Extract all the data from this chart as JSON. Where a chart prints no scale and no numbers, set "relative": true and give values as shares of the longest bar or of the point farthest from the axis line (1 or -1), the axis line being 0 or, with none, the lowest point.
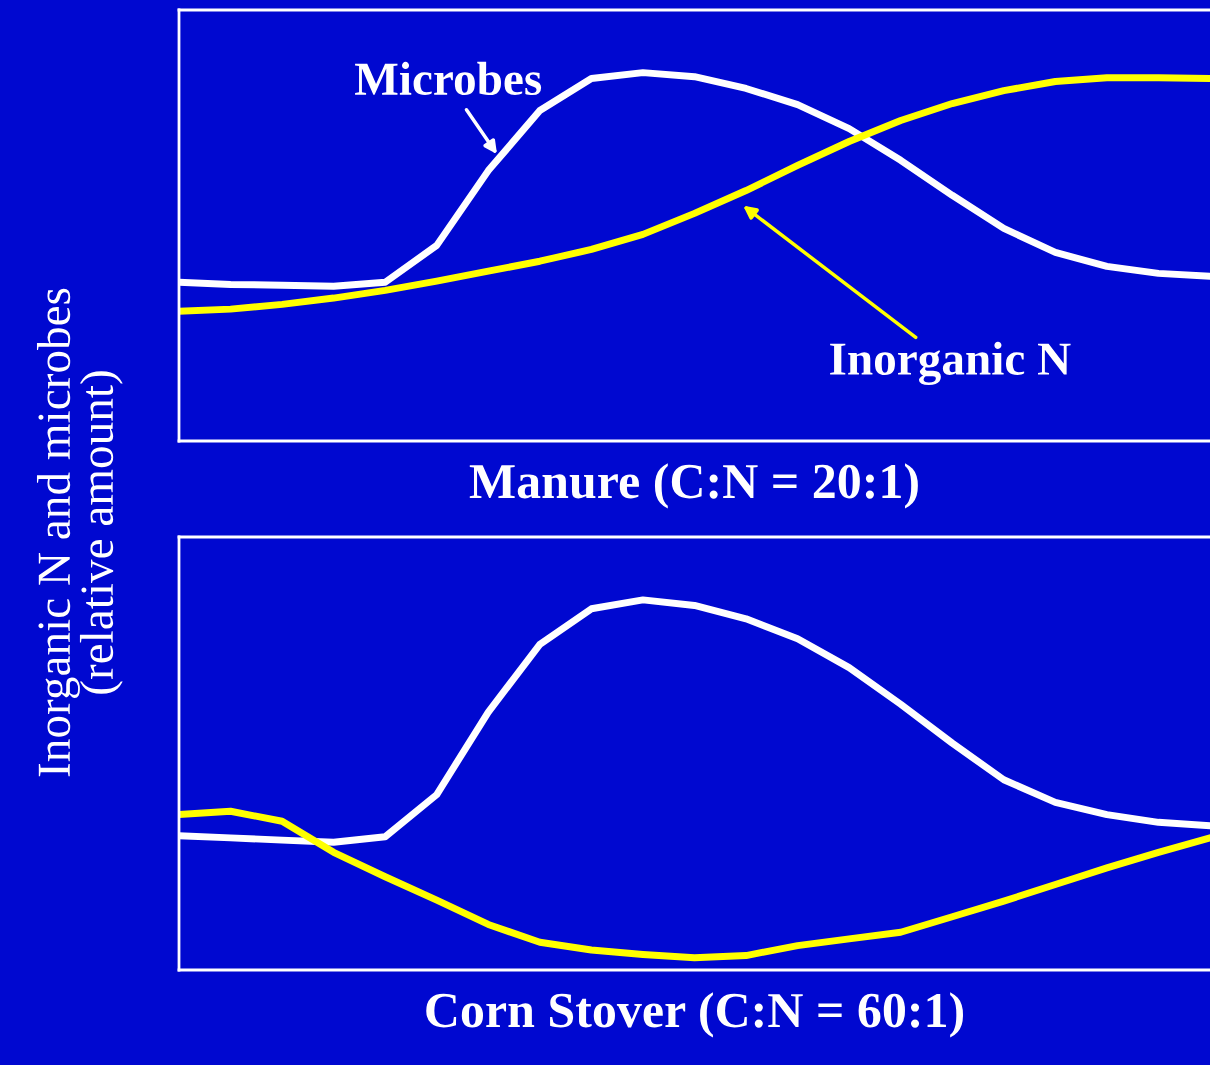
{
  "chart_data": [
    {
      "type": "line",
      "relative": true,
      "xlabel": "Manure (C:N = 20:1)",
      "ylabel": "Inorganic N and microbes\n(relative amount)",
      "tick_labels": false,
      "grid": false,
      "legend": false,
      "categories": [
        null,
        null,
        null,
        null,
        null,
        null,
        null,
        null,
        null,
        null,
        null,
        null,
        null,
        null,
        null,
        null,
        null,
        null,
        null,
        null,
        null
      ],
      "series": [
        {
          "name": "Microbes",
          "color": "#ffffff",
          "values": [
            0.431,
            0.425,
            0.423,
            0.42,
            0.431,
            0.531,
            0.734,
            0.897,
            0.984,
            1.0,
            0.989,
            0.957,
            0.913,
            0.848,
            0.762,
            0.667,
            0.577,
            0.512,
            0.474,
            0.455,
            0.447
          ]
        },
        {
          "name": "Inorganic N",
          "color": "#ffff00",
          "values": [
            0.352,
            0.358,
            0.371,
            0.388,
            0.409,
            0.434,
            0.461,
            0.488,
            0.52,
            0.561,
            0.618,
            0.68,
            0.748,
            0.813,
            0.87,
            0.916,
            0.951,
            0.976,
            0.986,
            0.986,
            0.984
          ]
        }
      ]
    },
    {
      "type": "line",
      "relative": true,
      "xlabel": "Corn Stover (C:N = 60:1)",
      "tick_labels": false,
      "grid": false,
      "legend": false,
      "categories": [
        null,
        null,
        null,
        null,
        null,
        null,
        null,
        null,
        null,
        null,
        null,
        null,
        null,
        null,
        null,
        null,
        null,
        null,
        null,
        null,
        null
      ],
      "series": [
        {
          "color": "#ffffff",
          "values": [
            0.363,
            0.357,
            0.351,
            0.345,
            0.36,
            0.474,
            0.697,
            0.88,
            0.976,
            1.0,
            0.985,
            0.949,
            0.895,
            0.817,
            0.718,
            0.613,
            0.514,
            0.453,
            0.42,
            0.399,
            0.39
          ]
        },
        {
          "color": "#ffff00",
          "values": [
            0.42,
            0.429,
            0.402,
            0.318,
            0.252,
            0.189,
            0.123,
            0.075,
            0.054,
            0.042,
            0.033,
            0.039,
            0.066,
            0.084,
            0.102,
            0.144,
            0.186,
            0.231,
            0.276,
            0.318,
            0.357
          ]
        }
      ]
    }
  ]
}
